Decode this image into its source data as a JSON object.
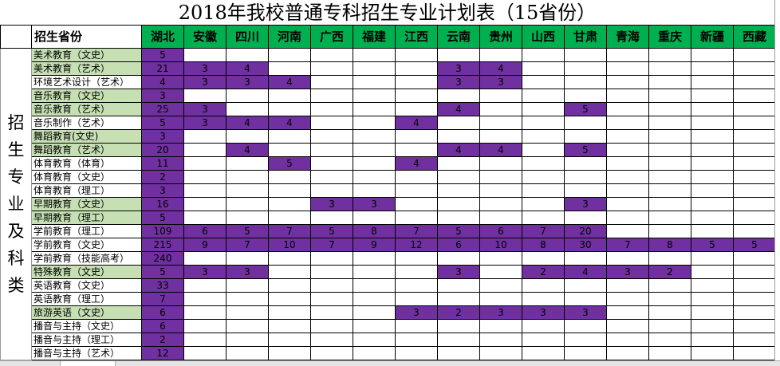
{
  "title": "2018年我校普通专科招生专业计划表（15省份）",
  "side_label": "招生专业及科类",
  "corner_label": "招生省份",
  "colors": {
    "header_green": "#00b050",
    "value_purple": "#7030a0",
    "label_green": "#c6e0b4"
  },
  "provinces": [
    "湖北",
    "安徽",
    "四川",
    "河南",
    "广西",
    "福建",
    "江西",
    "云南",
    "贵州",
    "山西",
    "甘肃",
    "青海",
    "重庆",
    "新疆",
    "西藏"
  ],
  "rows": [
    {
      "major": "美术教育（文史）",
      "highlight": true,
      "values": [
        5,
        null,
        null,
        null,
        null,
        null,
        null,
        null,
        null,
        null,
        null,
        null,
        null,
        null,
        null
      ]
    },
    {
      "major": "美术教育（艺术）",
      "highlight": true,
      "values": [
        21,
        3,
        4,
        null,
        null,
        null,
        null,
        3,
        4,
        null,
        null,
        null,
        null,
        null,
        null
      ]
    },
    {
      "major": "环境艺术设计（艺术）",
      "highlight": false,
      "values": [
        4,
        3,
        3,
        4,
        null,
        null,
        null,
        3,
        3,
        null,
        null,
        null,
        null,
        null,
        null
      ]
    },
    {
      "major": "音乐教育（文史）",
      "highlight": true,
      "values": [
        3,
        null,
        null,
        null,
        null,
        null,
        null,
        null,
        null,
        null,
        null,
        null,
        null,
        null,
        null
      ]
    },
    {
      "major": "音乐教育（艺术）",
      "highlight": true,
      "values": [
        25,
        3,
        null,
        null,
        null,
        null,
        null,
        4,
        null,
        null,
        5,
        null,
        null,
        null,
        null
      ]
    },
    {
      "major": "音乐制作（艺术）",
      "highlight": false,
      "values": [
        5,
        3,
        4,
        4,
        null,
        null,
        4,
        null,
        null,
        null,
        null,
        null,
        null,
        null,
        null
      ]
    },
    {
      "major": "舞蹈教育(文史)",
      "highlight": true,
      "values": [
        3,
        null,
        null,
        null,
        null,
        null,
        null,
        null,
        null,
        null,
        null,
        null,
        null,
        null,
        null
      ]
    },
    {
      "major": "舞蹈教育（艺术）",
      "highlight": true,
      "values": [
        20,
        null,
        4,
        null,
        null,
        null,
        null,
        4,
        4,
        null,
        5,
        null,
        null,
        null,
        null
      ]
    },
    {
      "major": "体育教育（体育）",
      "highlight": false,
      "values": [
        11,
        null,
        null,
        5,
        null,
        null,
        4,
        null,
        null,
        null,
        null,
        null,
        null,
        null,
        null
      ]
    },
    {
      "major": "体育教育（文史）",
      "highlight": false,
      "values": [
        2,
        null,
        null,
        null,
        null,
        null,
        null,
        null,
        null,
        null,
        null,
        null,
        null,
        null,
        null
      ]
    },
    {
      "major": "体育教育（理工）",
      "highlight": false,
      "values": [
        3,
        null,
        null,
        null,
        null,
        null,
        null,
        null,
        null,
        null,
        null,
        null,
        null,
        null,
        null
      ]
    },
    {
      "major": "早期教育（文史）",
      "highlight": true,
      "values": [
        16,
        null,
        null,
        null,
        3,
        3,
        null,
        null,
        null,
        null,
        3,
        null,
        null,
        null,
        null
      ]
    },
    {
      "major": "早期教育（理工）",
      "highlight": true,
      "values": [
        5,
        null,
        null,
        null,
        null,
        null,
        null,
        null,
        null,
        null,
        null,
        null,
        null,
        null,
        null
      ]
    },
    {
      "major": "学前教育（理工）",
      "highlight": false,
      "values": [
        109,
        6,
        5,
        7,
        5,
        8,
        7,
        5,
        6,
        7,
        20,
        null,
        null,
        null,
        null
      ]
    },
    {
      "major": "学前教育（文史）",
      "highlight": false,
      "values": [
        215,
        9,
        7,
        10,
        7,
        9,
        12,
        6,
        10,
        8,
        30,
        7,
        8,
        5,
        5
      ]
    },
    {
      "major": "学前教育（技能高考）",
      "highlight": false,
      "values": [
        240,
        null,
        null,
        null,
        null,
        null,
        null,
        null,
        null,
        null,
        null,
        null,
        null,
        null,
        null
      ]
    },
    {
      "major": "特殊教育（文史）",
      "highlight": true,
      "values": [
        5,
        3,
        3,
        null,
        null,
        null,
        null,
        3,
        null,
        2,
        4,
        3,
        2,
        null,
        null
      ]
    },
    {
      "major": "英语教育（文史）",
      "highlight": false,
      "values": [
        33,
        null,
        null,
        null,
        null,
        null,
        null,
        null,
        null,
        null,
        null,
        null,
        null,
        null,
        null
      ]
    },
    {
      "major": "英语教育（理工）",
      "highlight": false,
      "values": [
        7,
        null,
        null,
        null,
        null,
        null,
        null,
        null,
        null,
        null,
        null,
        null,
        null,
        null,
        null
      ]
    },
    {
      "major": "旅游英语（文史）",
      "highlight": true,
      "values": [
        6,
        null,
        null,
        null,
        null,
        null,
        3,
        2,
        3,
        3,
        3,
        null,
        null,
        null,
        null
      ]
    },
    {
      "major": "播音与主持（文史）",
      "highlight": false,
      "values": [
        6,
        null,
        null,
        null,
        null,
        null,
        null,
        null,
        null,
        null,
        null,
        null,
        null,
        null,
        null
      ]
    },
    {
      "major": "播音与主持（理工）",
      "highlight": false,
      "values": [
        2,
        null,
        null,
        null,
        null,
        null,
        null,
        null,
        null,
        null,
        null,
        null,
        null,
        null,
        null
      ]
    },
    {
      "major": "播音与主持（艺术）",
      "highlight": false,
      "values": [
        12,
        null,
        null,
        null,
        null,
        null,
        null,
        null,
        null,
        null,
        null,
        null,
        null,
        null,
        null
      ]
    }
  ]
}
